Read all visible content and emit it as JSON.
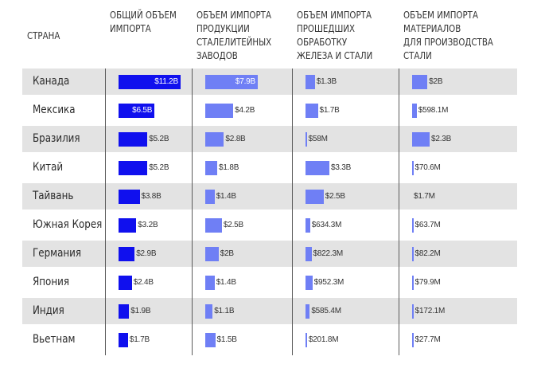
{
  "chart_data": {
    "type": "table",
    "headers": {
      "country": "СТРАНА",
      "total": [
        "ОБЩИЙ ОБЪЕМ",
        "ИМПОРТА"
      ],
      "steel": [
        "ОБЪЕМ ИМПОРТА",
        "ПРОДУКЦИИ",
        "СТАЛЕЛИТЕЙНЫХ",
        "ЗАВОДОВ"
      ],
      "iron": [
        "ОБЪЕМ ИМПОРТА",
        "ПРОШЕДШИХ",
        "ОБРАБОТКУ",
        "ЖЕЛЕЗА И СТАЛИ"
      ],
      "materials": [
        "ОБЪЕМ ИМПОРТА",
        "МАТЕРИАЛОВ",
        "ДЛЯ ПРОИЗВОДСТВА",
        "СТАЛИ"
      ]
    },
    "units": "USD billions",
    "colors": {
      "total": "#1010ee",
      "other": "#6f7ff5",
      "row_shade": "#e3e3e3",
      "divider": "#5b5b5b"
    },
    "rows": [
      {
        "country": "Канада",
        "total": 11.2,
        "total_label": "$11.2B",
        "steel": 7.9,
        "steel_label": "$7.9B",
        "iron": 1.3,
        "iron_label": "$1.3B",
        "materials": 2.0,
        "materials_label": "$2B"
      },
      {
        "country": "Мексика",
        "total": 6.5,
        "total_label": "$6.5B",
        "steel": 4.2,
        "steel_label": "$4.2B",
        "iron": 1.7,
        "iron_label": "$1.7B",
        "materials": 0.5981,
        "materials_label": "$598.1M"
      },
      {
        "country": "Бразилия",
        "total": 5.2,
        "total_label": "$5.2B",
        "steel": 2.8,
        "steel_label": "$2.8B",
        "iron": 0.058,
        "iron_label": "$58M",
        "materials": 2.3,
        "materials_label": "$2.3B"
      },
      {
        "country": "Китай",
        "total": 5.2,
        "total_label": "$5.2B",
        "steel": 1.8,
        "steel_label": "$1.8B",
        "iron": 3.3,
        "iron_label": "$3.3B",
        "materials": 0.0706,
        "materials_label": "$70.6M"
      },
      {
        "country": "Тайвань",
        "total": 3.8,
        "total_label": "$3.8B",
        "steel": 1.4,
        "steel_label": "$1.4B",
        "iron": 2.5,
        "iron_label": "$2.5B",
        "materials": 0.0017,
        "materials_label": "$1.7M"
      },
      {
        "country": "Южная Корея",
        "total": 3.2,
        "total_label": "$3.2B",
        "steel": 2.5,
        "steel_label": "$2.5B",
        "iron": 0.6343,
        "iron_label": "$634.3M",
        "materials": 0.0637,
        "materials_label": "$63.7M"
      },
      {
        "country": "Германия",
        "total": 2.9,
        "total_label": "$2.9B",
        "steel": 2.0,
        "steel_label": "$2B",
        "iron": 0.8223,
        "iron_label": "$822.3M",
        "materials": 0.0822,
        "materials_label": "$82.2M"
      },
      {
        "country": "Япония",
        "total": 2.4,
        "total_label": "$2.4B",
        "steel": 1.4,
        "steel_label": "$1.4B",
        "iron": 0.9523,
        "iron_label": "$952.3M",
        "materials": 0.0799,
        "materials_label": "$79.9M"
      },
      {
        "country": "Индия",
        "total": 1.9,
        "total_label": "$1.9B",
        "steel": 1.1,
        "steel_label": "$1.1B",
        "iron": 0.5854,
        "iron_label": "$585.4M",
        "materials": 0.1721,
        "materials_label": "$172.1M"
      },
      {
        "country": "Вьетнам",
        "total": 1.7,
        "total_label": "$1.7B",
        "steel": 1.5,
        "steel_label": "$1.5B",
        "iron": 0.2018,
        "iron_label": "$201.8M",
        "materials": 0.0277,
        "materials_label": "$27.7M"
      }
    ]
  }
}
